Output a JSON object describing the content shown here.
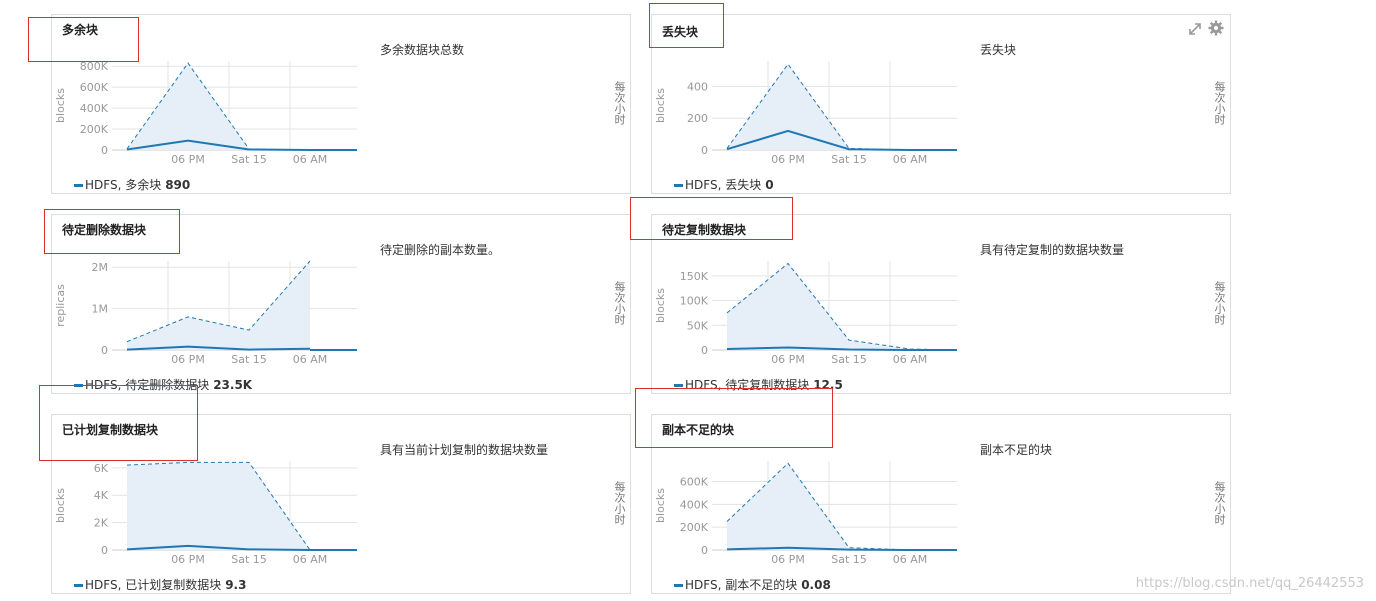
{
  "colors": {
    "series": "#1f77b4",
    "area": "#e6eef7",
    "grid": "#e3e3e3",
    "axis_text": "#999999",
    "highlight": "#d9302c"
  },
  "time_axis": [
    "06 PM",
    "Sat 15",
    "06 AM"
  ],
  "side_label": "每次小时",
  "watermark": "https://blog.csdn.net/qq_26442553",
  "toolbar_icons": [
    "expand-icon",
    "gear-icon"
  ],
  "panels": [
    {
      "id": "excess",
      "title": "多余块",
      "desc": "多余数据块总数",
      "ylabel": "blocks",
      "legend": {
        "prefix": "HDFS, 多余块",
        "value": "890"
      },
      "chart_data": {
        "type": "area",
        "ylim": [
          0,
          850000
        ],
        "yticks": [
          0,
          200000,
          400000,
          600000,
          800000
        ],
        "ytick_labels": [
          "0",
          "200K",
          "400K",
          "600K",
          "800K"
        ],
        "max": [
          10000,
          830000,
          10000,
          0,
          0
        ],
        "mean": [
          5000,
          90000,
          5000,
          0,
          0
        ]
      }
    },
    {
      "id": "missing",
      "title": "丢失块",
      "desc": "丢失块",
      "ylabel": "blocks",
      "legend": {
        "prefix": "HDFS, 丢失块",
        "value": "0"
      },
      "chart_data": {
        "type": "area",
        "ylim": [
          0,
          560
        ],
        "yticks": [
          0,
          200,
          400
        ],
        "ytick_labels": [
          "0",
          "200",
          "400"
        ],
        "max": [
          10,
          540,
          10,
          0,
          0
        ],
        "mean": [
          5,
          120,
          5,
          0,
          0
        ]
      }
    },
    {
      "id": "pending-deletion",
      "title": "待定删除数据块",
      "desc": "待定删除的副本数量。",
      "ylabel": "replicas",
      "legend": {
        "prefix": "HDFS, 待定删除数据块",
        "value": "23.5K"
      },
      "chart_data": {
        "type": "area",
        "ylim": [
          0,
          2150000
        ],
        "yticks": [
          0,
          1000000,
          2000000
        ],
        "ytick_labels": [
          "0",
          "1M",
          "2M"
        ],
        "max": [
          200000,
          800000,
          480000,
          2150000
        ],
        "mean": [
          10000,
          80000,
          10000,
          30000
        ]
      }
    },
    {
      "id": "pending-replication",
      "title": "待定复制数据块",
      "desc": "具有待定复制的数据块数量",
      "ylabel": "blocks",
      "legend": {
        "prefix": "HDFS, 待定复制数据块",
        "value": "12.5"
      },
      "chart_data": {
        "type": "area",
        "ylim": [
          0,
          180000
        ],
        "yticks": [
          0,
          50000,
          100000,
          150000
        ],
        "ytick_labels": [
          "0",
          "50K",
          "100K",
          "150K"
        ],
        "max": [
          75000,
          175000,
          20000,
          2000,
          0
        ],
        "mean": [
          2000,
          5000,
          1000,
          0,
          0
        ]
      }
    },
    {
      "id": "scheduled-replication",
      "title": "已计划复制数据块",
      "desc": "具有当前计划复制的数据块数量",
      "ylabel": "blocks",
      "legend": {
        "prefix": "HDFS, 已计划复制数据块",
        "value": "9.3"
      },
      "chart_data": {
        "type": "area",
        "ylim": [
          0,
          6500
        ],
        "yticks": [
          0,
          2000,
          4000,
          6000
        ],
        "ytick_labels": [
          "0",
          "2K",
          "4K",
          "6K"
        ],
        "max": [
          6200,
          6400,
          6400,
          0
        ],
        "mean": [
          50,
          300,
          50,
          0
        ]
      }
    },
    {
      "id": "under-replicated",
      "title": "副本不足的块",
      "desc": "副本不足的块",
      "ylabel": "blocks",
      "legend": {
        "prefix": "HDFS, 副本不足的块",
        "value": "0.08"
      },
      "chart_data": {
        "type": "area",
        "ylim": [
          0,
          780000
        ],
        "yticks": [
          0,
          200000,
          400000,
          600000
        ],
        "ytick_labels": [
          "0",
          "200K",
          "400K",
          "600K"
        ],
        "max": [
          250000,
          760000,
          20000,
          0,
          0
        ],
        "mean": [
          5000,
          20000,
          3000,
          0,
          0
        ]
      }
    }
  ]
}
